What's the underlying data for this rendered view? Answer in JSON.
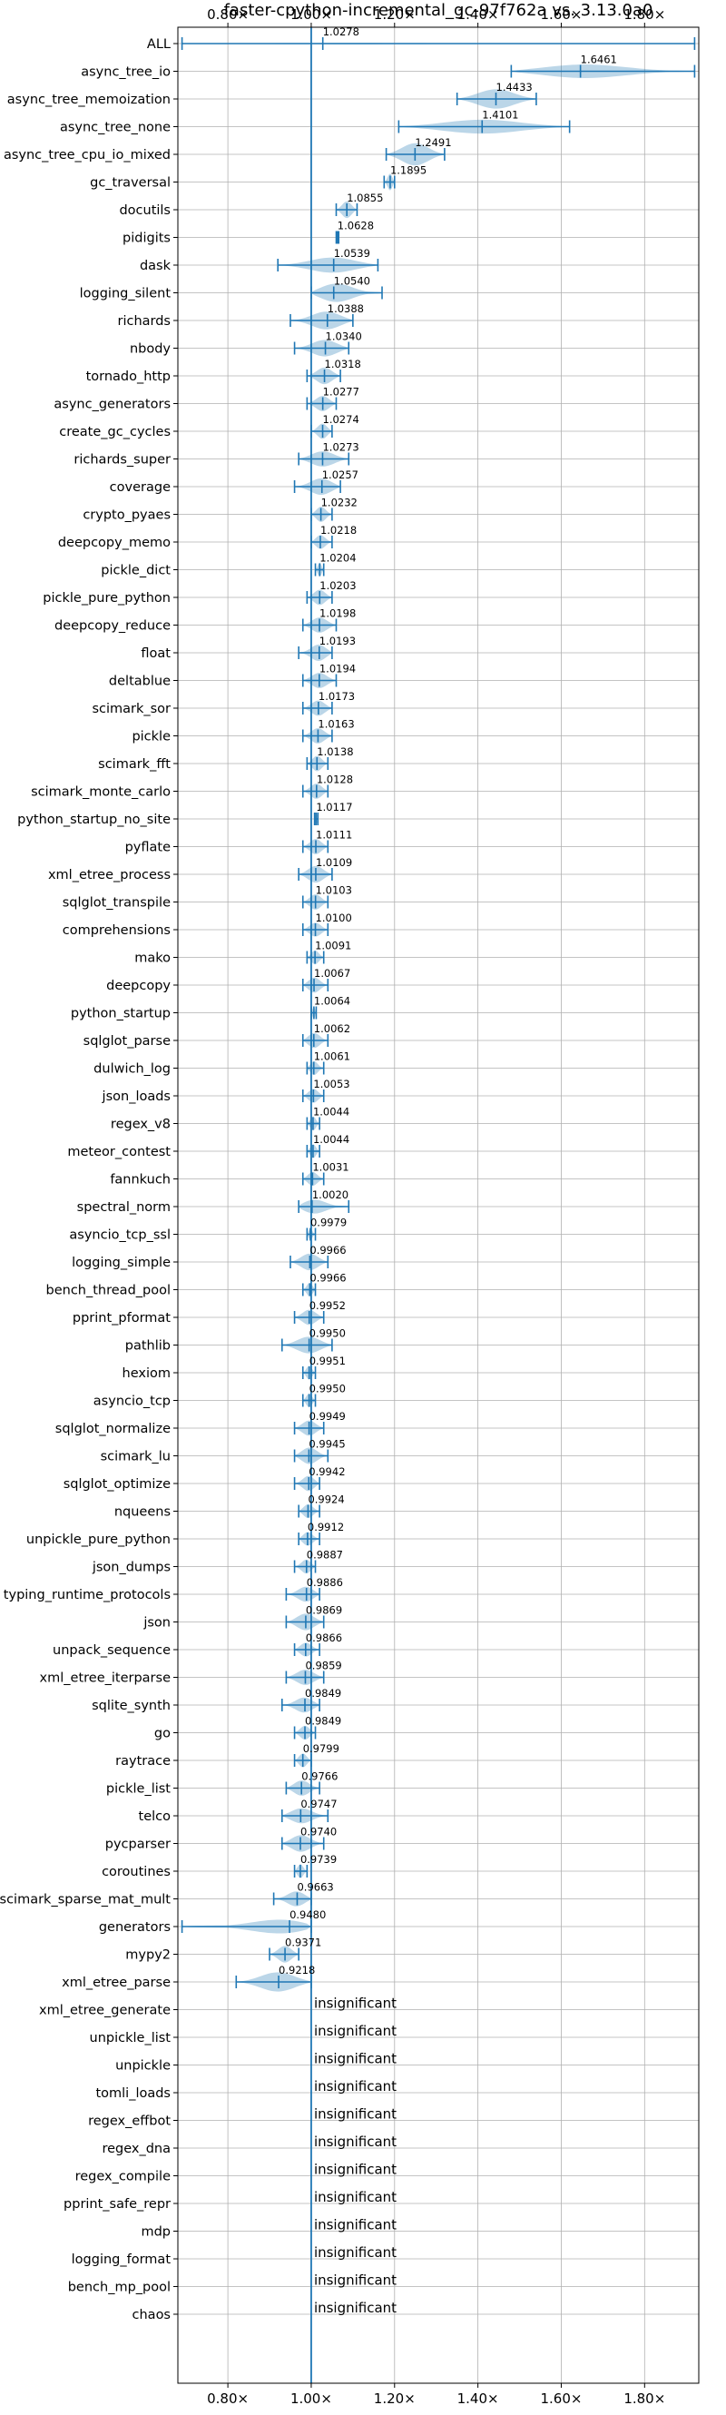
{
  "chart_data": {
    "type": "violin",
    "title": "faster-cpython-incremental_gc-97f762a vs. 3.13.0a0",
    "xlim": [
      0.68,
      1.93
    ],
    "x_ticks": [
      0.8,
      1.0,
      1.2,
      1.4,
      1.6,
      1.8
    ],
    "x_tick_labels": [
      "0.80×",
      "1.00×",
      "1.20×",
      "1.40×",
      "1.60×",
      "1.80×"
    ],
    "grid": true,
    "reference_line": 1.0,
    "insignificant_label": "insignificant",
    "benchmarks": [
      {
        "name": "ALL",
        "label": "1.0278",
        "value": 1.0278,
        "min": 0.69,
        "max": 1.92,
        "width": 0.05
      },
      {
        "name": "async_tree_io",
        "label": "1.6461",
        "value": 1.6461,
        "min": 1.48,
        "max": 1.92,
        "width": 0.5
      },
      {
        "name": "async_tree_memoization",
        "label": "1.4433",
        "value": 1.4433,
        "min": 1.35,
        "max": 1.54,
        "width": 0.7
      },
      {
        "name": "async_tree_none",
        "label": "1.4101",
        "value": 1.4101,
        "min": 1.21,
        "max": 1.62,
        "width": 0.5
      },
      {
        "name": "async_tree_cpu_io_mixed",
        "label": "1.2491",
        "value": 1.2491,
        "min": 1.18,
        "max": 1.32,
        "width": 0.8
      },
      {
        "name": "gc_traversal",
        "label": "1.1895",
        "value": 1.1895,
        "min": 1.175,
        "max": 1.2,
        "width": 0.6
      },
      {
        "name": "docutils",
        "label": "1.0855",
        "value": 1.0855,
        "min": 1.06,
        "max": 1.11,
        "width": 0.6
      },
      {
        "name": "pidigits",
        "label": "1.0628",
        "value": 1.0628,
        "min": 1.06,
        "max": 1.066,
        "width": 0.3
      },
      {
        "name": "dask",
        "label": "1.0539",
        "value": 1.0539,
        "min": 0.92,
        "max": 1.16,
        "width": 0.55
      },
      {
        "name": "logging_silent",
        "label": "1.0540",
        "value": 1.054,
        "min": 1.0,
        "max": 1.17,
        "width": 0.7
      },
      {
        "name": "richards",
        "label": "1.0388",
        "value": 1.0388,
        "min": 0.95,
        "max": 1.1,
        "width": 0.65
      },
      {
        "name": "nbody",
        "label": "1.0340",
        "value": 1.034,
        "min": 0.96,
        "max": 1.09,
        "width": 0.6
      },
      {
        "name": "tornado_http",
        "label": "1.0318",
        "value": 1.0318,
        "min": 0.99,
        "max": 1.07,
        "width": 0.6
      },
      {
        "name": "async_generators",
        "label": "1.0277",
        "value": 1.0277,
        "min": 0.99,
        "max": 1.06,
        "width": 0.55
      },
      {
        "name": "create_gc_cycles",
        "label": "1.0274",
        "value": 1.0274,
        "min": 1.0,
        "max": 1.05,
        "width": 0.55
      },
      {
        "name": "richards_super",
        "label": "1.0273",
        "value": 1.0273,
        "min": 0.97,
        "max": 1.09,
        "width": 0.55
      },
      {
        "name": "coverage",
        "label": "1.0257",
        "value": 1.0257,
        "min": 0.96,
        "max": 1.07,
        "width": 0.6
      },
      {
        "name": "crypto_pyaes",
        "label": "1.0232",
        "value": 1.0232,
        "min": 1.0,
        "max": 1.05,
        "width": 0.55
      },
      {
        "name": "deepcopy_memo",
        "label": "1.0218",
        "value": 1.0218,
        "min": 1.0,
        "max": 1.05,
        "width": 0.5
      },
      {
        "name": "pickle_dict",
        "label": "1.0204",
        "value": 1.0204,
        "min": 1.01,
        "max": 1.03,
        "width": 0.5
      },
      {
        "name": "pickle_pure_python",
        "label": "1.0203",
        "value": 1.0203,
        "min": 0.99,
        "max": 1.05,
        "width": 0.55
      },
      {
        "name": "deepcopy_reduce",
        "label": "1.0198",
        "value": 1.0198,
        "min": 0.98,
        "max": 1.06,
        "width": 0.55
      },
      {
        "name": "float",
        "label": "1.0193",
        "value": 1.0193,
        "min": 0.97,
        "max": 1.05,
        "width": 0.6
      },
      {
        "name": "deltablue",
        "label": "1.0194",
        "value": 1.0194,
        "min": 0.98,
        "max": 1.06,
        "width": 0.55
      },
      {
        "name": "scimark_sor",
        "label": "1.0173",
        "value": 1.0173,
        "min": 0.98,
        "max": 1.05,
        "width": 0.55
      },
      {
        "name": "pickle",
        "label": "1.0163",
        "value": 1.0163,
        "min": 0.98,
        "max": 1.05,
        "width": 0.55
      },
      {
        "name": "scimark_fft",
        "label": "1.0138",
        "value": 1.0138,
        "min": 0.99,
        "max": 1.04,
        "width": 0.55
      },
      {
        "name": "scimark_monte_carlo",
        "label": "1.0128",
        "value": 1.0128,
        "min": 0.98,
        "max": 1.04,
        "width": 0.55
      },
      {
        "name": "python_startup_no_site",
        "label": "1.0117",
        "value": 1.0117,
        "min": 1.008,
        "max": 1.016,
        "width": 0.4
      },
      {
        "name": "pyflate",
        "label": "1.0111",
        "value": 1.0111,
        "min": 0.98,
        "max": 1.04,
        "width": 0.55
      },
      {
        "name": "xml_etree_process",
        "label": "1.0109",
        "value": 1.0109,
        "min": 0.97,
        "max": 1.05,
        "width": 0.6
      },
      {
        "name": "sqlglot_transpile",
        "label": "1.0103",
        "value": 1.0103,
        "min": 0.98,
        "max": 1.04,
        "width": 0.55
      },
      {
        "name": "comprehensions",
        "label": "1.0100",
        "value": 1.01,
        "min": 0.98,
        "max": 1.04,
        "width": 0.5
      },
      {
        "name": "mako",
        "label": "1.0091",
        "value": 1.0091,
        "min": 0.99,
        "max": 1.03,
        "width": 0.5
      },
      {
        "name": "deepcopy",
        "label": "1.0067",
        "value": 1.0067,
        "min": 0.98,
        "max": 1.04,
        "width": 0.55
      },
      {
        "name": "python_startup",
        "label": "1.0064",
        "value": 1.0064,
        "min": 1.0,
        "max": 1.012,
        "width": 0.4
      },
      {
        "name": "sqlglot_parse",
        "label": "1.0062",
        "value": 1.0062,
        "min": 0.98,
        "max": 1.04,
        "width": 0.55
      },
      {
        "name": "dulwich_log",
        "label": "1.0061",
        "value": 1.0061,
        "min": 0.99,
        "max": 1.03,
        "width": 0.5
      },
      {
        "name": "json_loads",
        "label": "1.0053",
        "value": 1.0053,
        "min": 0.98,
        "max": 1.03,
        "width": 0.5
      },
      {
        "name": "regex_v8",
        "label": "1.0044",
        "value": 1.0044,
        "min": 0.99,
        "max": 1.02,
        "width": 0.5
      },
      {
        "name": "meteor_contest",
        "label": "1.0044",
        "value": 1.0044,
        "min": 0.99,
        "max": 1.02,
        "width": 0.5
      },
      {
        "name": "fannkuch",
        "label": "1.0031",
        "value": 1.0031,
        "min": 0.98,
        "max": 1.03,
        "width": 0.5
      },
      {
        "name": "spectral_norm",
        "label": "1.0020",
        "value": 1.002,
        "min": 0.97,
        "max": 1.09,
        "width": 0.55
      },
      {
        "name": "asyncio_tcp_ssl",
        "label": "0.9979",
        "value": 0.9979,
        "min": 0.99,
        "max": 1.01,
        "width": 0.4
      },
      {
        "name": "logging_simple",
        "label": "0.9966",
        "value": 0.9966,
        "min": 0.95,
        "max": 1.04,
        "width": 0.6
      },
      {
        "name": "bench_thread_pool",
        "label": "0.9966",
        "value": 0.9966,
        "min": 0.98,
        "max": 1.01,
        "width": 0.5
      },
      {
        "name": "pprint_pformat",
        "label": "0.9952",
        "value": 0.9952,
        "min": 0.96,
        "max": 1.03,
        "width": 0.55
      },
      {
        "name": "pathlib",
        "label": "0.9950",
        "value": 0.995,
        "min": 0.93,
        "max": 1.05,
        "width": 0.6
      },
      {
        "name": "hexiom",
        "label": "0.9951",
        "value": 0.9951,
        "min": 0.98,
        "max": 1.01,
        "width": 0.5
      },
      {
        "name": "asyncio_tcp",
        "label": "0.9950",
        "value": 0.995,
        "min": 0.98,
        "max": 1.01,
        "width": 0.5
      },
      {
        "name": "sqlglot_normalize",
        "label": "0.9949",
        "value": 0.9949,
        "min": 0.96,
        "max": 1.03,
        "width": 0.55
      },
      {
        "name": "scimark_lu",
        "label": "0.9945",
        "value": 0.9945,
        "min": 0.96,
        "max": 1.04,
        "width": 0.6
      },
      {
        "name": "sqlglot_optimize",
        "label": "0.9942",
        "value": 0.9942,
        "min": 0.96,
        "max": 1.02,
        "width": 0.55
      },
      {
        "name": "nqueens",
        "label": "0.9924",
        "value": 0.9924,
        "min": 0.97,
        "max": 1.02,
        "width": 0.5
      },
      {
        "name": "unpickle_pure_python",
        "label": "0.9912",
        "value": 0.9912,
        "min": 0.97,
        "max": 1.02,
        "width": 0.5
      },
      {
        "name": "json_dumps",
        "label": "0.9887",
        "value": 0.9887,
        "min": 0.96,
        "max": 1.01,
        "width": 0.5
      },
      {
        "name": "typing_runtime_protocols",
        "label": "0.9886",
        "value": 0.9886,
        "min": 0.94,
        "max": 1.02,
        "width": 0.55
      },
      {
        "name": "json",
        "label": "0.9869",
        "value": 0.9869,
        "min": 0.94,
        "max": 1.03,
        "width": 0.6
      },
      {
        "name": "unpack_sequence",
        "label": "0.9866",
        "value": 0.9866,
        "min": 0.96,
        "max": 1.02,
        "width": 0.5
      },
      {
        "name": "xml_etree_iterparse",
        "label": "0.9859",
        "value": 0.9859,
        "min": 0.94,
        "max": 1.03,
        "width": 0.55
      },
      {
        "name": "sqlite_synth",
        "label": "0.9849",
        "value": 0.9849,
        "min": 0.93,
        "max": 1.02,
        "width": 0.55
      },
      {
        "name": "go",
        "label": "0.9849",
        "value": 0.9849,
        "min": 0.96,
        "max": 1.01,
        "width": 0.5
      },
      {
        "name": "raytrace",
        "label": "0.9799",
        "value": 0.9799,
        "min": 0.96,
        "max": 1.0,
        "width": 0.5
      },
      {
        "name": "pickle_list",
        "label": "0.9766",
        "value": 0.9766,
        "min": 0.94,
        "max": 1.02,
        "width": 0.55
      },
      {
        "name": "telco",
        "label": "0.9747",
        "value": 0.9747,
        "min": 0.93,
        "max": 1.04,
        "width": 0.55
      },
      {
        "name": "pycparser",
        "label": "0.9740",
        "value": 0.974,
        "min": 0.93,
        "max": 1.03,
        "width": 0.6
      },
      {
        "name": "coroutines",
        "label": "0.9739",
        "value": 0.9739,
        "min": 0.96,
        "max": 0.99,
        "width": 0.5
      },
      {
        "name": "scimark_sparse_mat_mult",
        "label": "0.9663",
        "value": 0.9663,
        "min": 0.91,
        "max": 1.0,
        "width": 0.55
      },
      {
        "name": "generators",
        "label": "0.9480",
        "value": 0.948,
        "min": 0.69,
        "max": 1.0,
        "width": 0.6
      },
      {
        "name": "mypy2",
        "label": "0.9371",
        "value": 0.9371,
        "min": 0.9,
        "max": 0.97,
        "width": 0.6
      },
      {
        "name": "xml_etree_parse",
        "label": "0.9218",
        "value": 0.9218,
        "min": 0.82,
        "max": 1.0,
        "width": 0.7
      },
      {
        "name": "xml_etree_generate",
        "label": "insignificant",
        "insignificant": true
      },
      {
        "name": "unpickle_list",
        "label": "insignificant",
        "insignificant": true
      },
      {
        "name": "unpickle",
        "label": "insignificant",
        "insignificant": true
      },
      {
        "name": "tomli_loads",
        "label": "insignificant",
        "insignificant": true
      },
      {
        "name": "regex_effbot",
        "label": "insignificant",
        "insignificant": true
      },
      {
        "name": "regex_dna",
        "label": "insignificant",
        "insignificant": true
      },
      {
        "name": "regex_compile",
        "label": "insignificant",
        "insignificant": true
      },
      {
        "name": "pprint_safe_repr",
        "label": "insignificant",
        "insignificant": true
      },
      {
        "name": "mdp",
        "label": "insignificant",
        "insignificant": true
      },
      {
        "name": "logging_format",
        "label": "insignificant",
        "insignificant": true
      },
      {
        "name": "bench_mp_pool",
        "label": "insignificant",
        "insignificant": true
      },
      {
        "name": "chaos",
        "label": "insignificant",
        "insignificant": true
      }
    ]
  },
  "colors": {
    "accent": "#1f77b4",
    "violin": "#1f77b4",
    "grid": "#b0b0b0",
    "text": "#000000"
  }
}
